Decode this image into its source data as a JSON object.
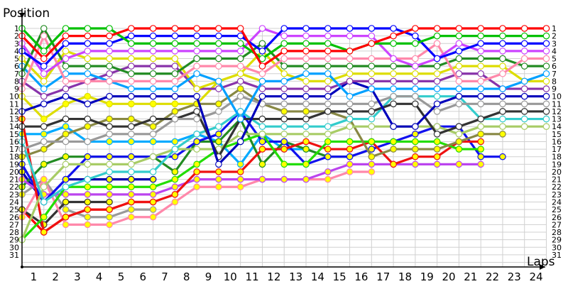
{
  "chart_data": {
    "type": "line",
    "title": "",
    "ylabel": "Position",
    "xlabel": "Laps",
    "x_ticks": [
      "1",
      "2",
      "3",
      "4",
      "5",
      "6",
      "7",
      "8",
      "9",
      "10",
      "11",
      "12",
      "13",
      "14",
      "15",
      "16",
      "17",
      "18",
      "19",
      "20",
      "21",
      "22",
      "23",
      "24"
    ],
    "y_ticks": [
      "1",
      "2",
      "3",
      "4",
      "5",
      "6",
      "7",
      "8",
      "9",
      "10",
      "11",
      "12",
      "13",
      "14",
      "15",
      "16",
      "17",
      "18",
      "19",
      "20",
      "21",
      "22",
      "23",
      "24",
      "25",
      "26",
      "27",
      "28",
      "29",
      "30",
      "31"
    ],
    "ylim": [
      1,
      31
    ],
    "xlim": [
      0,
      24
    ],
    "grid": true,
    "legend": "none",
    "marker_note": "hollow white markers = lead lap, yellow-filled markers = lapped",
    "series": [
      {
        "name": "red",
        "color": "#ff0000",
        "pos": [
          2,
          5,
          2,
          2,
          2,
          1,
          1,
          1,
          1,
          1,
          1,
          6,
          4,
          4,
          4,
          4,
          3,
          2,
          1,
          1,
          1,
          1,
          1,
          1,
          1
        ]
      },
      {
        "name": "green",
        "color": "#00c000",
        "pos": [
          1,
          4,
          1,
          1,
          1,
          3,
          3,
          3,
          3,
          3,
          3,
          5,
          3,
          3,
          3,
          4,
          3,
          3,
          3,
          2,
          2,
          2,
          2,
          2,
          2
        ]
      },
      {
        "name": "blue",
        "color": "#0000ff",
        "pos": [
          4,
          6,
          3,
          3,
          3,
          2,
          2,
          2,
          2,
          2,
          2,
          4,
          1,
          1,
          1,
          1,
          1,
          1,
          2,
          5,
          4,
          3,
          3,
          3,
          3
        ]
      },
      {
        "name": "violet",
        "color": "#cc44ff",
        "pos": [
          3,
          7,
          5,
          4,
          4,
          4,
          4,
          4,
          4,
          4,
          4,
          1,
          2,
          2,
          2,
          2,
          2,
          5,
          6,
          5,
          3,
          4,
          4,
          4,
          4
        ]
      },
      {
        "name": "pink",
        "color": "#ff88aa",
        "pos": [
          9,
          2,
          8,
          8,
          8,
          8,
          8,
          8,
          6,
          6,
          6,
          7,
          5,
          5,
          5,
          5,
          5,
          5,
          5,
          3,
          8,
          8,
          7,
          5,
          5
        ]
      },
      {
        "name": "darkgreen",
        "color": "#228b22",
        "pos": [
          7,
          1,
          6,
          6,
          6,
          7,
          7,
          7,
          5,
          5,
          5,
          3,
          6,
          6,
          6,
          6,
          6,
          6,
          6,
          6,
          5,
          5,
          5,
          6,
          6
        ]
      },
      {
        "name": "skyblue",
        "color": "#00a0ff",
        "pos": [
          6,
          9,
          7,
          7,
          8,
          9,
          9,
          9,
          7,
          8,
          13,
          8,
          8,
          7,
          7,
          10,
          9,
          9,
          9,
          9,
          9,
          9,
          9,
          8,
          7
        ]
      },
      {
        "name": "yellow",
        "color": "#dddd00",
        "pos": [
          5,
          8,
          4,
          5,
          5,
          5,
          5,
          5,
          9,
          8,
          7,
          4,
          7,
          8,
          8,
          7,
          7,
          7,
          7,
          7,
          6,
          6,
          6,
          8,
          8
        ]
      },
      {
        "name": "purple",
        "color": "#8833aa",
        "pos": [
          8,
          10,
          9,
          8,
          7,
          6,
          6,
          6,
          9,
          9,
          8,
          9,
          9,
          9,
          9,
          8,
          8,
          8,
          8,
          8,
          7,
          7,
          9,
          9,
          9
        ]
      },
      {
        "name": "navy",
        "color": "#0000bb",
        "pos": [
          12,
          11,
          10,
          11,
          10,
          10,
          10,
          10,
          10,
          19,
          16,
          10,
          10,
          10,
          10,
          8,
          9,
          14,
          14,
          11,
          10,
          10,
          10,
          10,
          10
        ]
      },
      {
        "name": "gray",
        "color": "#999999",
        "pos": [
          17,
          16,
          16,
          16,
          15,
          15,
          15,
          13,
          13,
          12,
          10,
          11,
          11,
          11,
          11,
          11,
          11,
          10,
          10,
          12,
          11,
          11,
          11,
          11,
          11
        ]
      },
      {
        "name": "charcoal",
        "color": "#333333",
        "pos": [
          14,
          14,
          13,
          13,
          14,
          14,
          13,
          13,
          12,
          18,
          13,
          13,
          13,
          13,
          12,
          12,
          12,
          11,
          11,
          15,
          14,
          13,
          12,
          12,
          12
        ]
      },
      {
        "name": "teal",
        "color": "#33cccc",
        "pos": [
          16,
          24,
          22,
          21,
          20,
          20,
          20,
          17,
          15,
          14,
          12,
          14,
          14,
          14,
          14,
          13,
          13,
          10,
          10,
          10,
          10,
          13,
          13,
          13,
          13
        ]
      },
      {
        "name": "lightgreen",
        "color": "#a8cc66",
        "pos": [
          29,
          22,
          19,
          19,
          19,
          19,
          18,
          17,
          17,
          17,
          15,
          15,
          15,
          15,
          15,
          14,
          14,
          14,
          14,
          14,
          15,
          14,
          14,
          14,
          14
        ]
      },
      {
        "name": "olive",
        "color": "#888844",
        "pos": [
          18,
          17,
          15,
          14,
          13,
          13,
          14,
          12,
          11,
          11,
          9,
          11,
          12,
          12,
          12,
          13,
          18,
          17,
          17,
          17,
          16,
          15,
          15
        ]
      },
      {
        "name": "lime",
        "color": "#22dd00",
        "pos": [
          29,
          26,
          22,
          22,
          22,
          22,
          22,
          21,
          19,
          17,
          16,
          15,
          19,
          19,
          16,
          16,
          16,
          16,
          16,
          16,
          17,
          17
        ]
      },
      {
        "name": "red2",
        "color": "#ee1111",
        "pos": [
          13,
          28,
          26,
          25,
          25,
          24,
          24,
          23,
          20,
          20,
          20,
          17,
          17,
          16,
          17,
          17,
          16,
          19,
          18,
          18,
          16,
          16
        ]
      },
      {
        "name": "blue2",
        "color": "#1111ee",
        "pos": [
          19,
          24,
          21,
          18,
          18,
          18,
          18,
          18,
          16,
          15,
          12,
          16,
          16,
          19,
          18,
          18,
          17,
          16,
          15,
          14,
          14,
          18,
          18
        ]
      },
      {
        "name": "violet2",
        "color": "#bb44ee",
        "pos": [
          21,
          23,
          23,
          23,
          23,
          23,
          23,
          22,
          21,
          21,
          21,
          21,
          21,
          21,
          20,
          19,
          19,
          19,
          19,
          19,
          19,
          19
        ]
      },
      {
        "name": "pink2",
        "color": "#ff88aa",
        "pos": [
          26,
          21,
          27,
          27,
          27,
          26,
          26,
          24,
          22,
          22,
          22,
          21,
          21,
          21,
          21,
          20,
          20
        ]
      },
      {
        "name": "darkgreen2",
        "color": "#228b22",
        "pos": [
          22,
          19,
          18,
          18,
          18,
          18,
          18,
          20,
          16,
          16,
          13,
          19,
          16,
          17,
          18,
          18,
          17
        ]
      },
      {
        "name": "skyblue2",
        "color": "#00aaff",
        "pos": [
          15,
          15,
          14,
          16,
          16,
          16,
          16,
          16,
          15,
          16,
          19,
          15,
          17,
          17,
          18
        ]
      },
      {
        "name": "yellow2",
        "color": "#dddd00",
        "pos": [
          10,
          13,
          11,
          10,
          11,
          11,
          11,
          11,
          11,
          8,
          7,
          8
        ]
      },
      {
        "name": "navy2",
        "color": "#0000aa",
        "pos": [
          20,
          24,
          21,
          21,
          21,
          21,
          21
        ]
      },
      {
        "name": "charcoal2",
        "color": "#333333",
        "pos": [
          25,
          27,
          24,
          24,
          24
        ]
      },
      {
        "name": "gray2",
        "color": "#999999",
        "pos": [
          23,
          21,
          25,
          26,
          26,
          25,
          25
        ]
      },
      {
        "name": "red3",
        "color": "#ff0000",
        "pos": [
          25,
          28,
          26,
          25,
          25,
          24,
          24
        ]
      }
    ]
  }
}
